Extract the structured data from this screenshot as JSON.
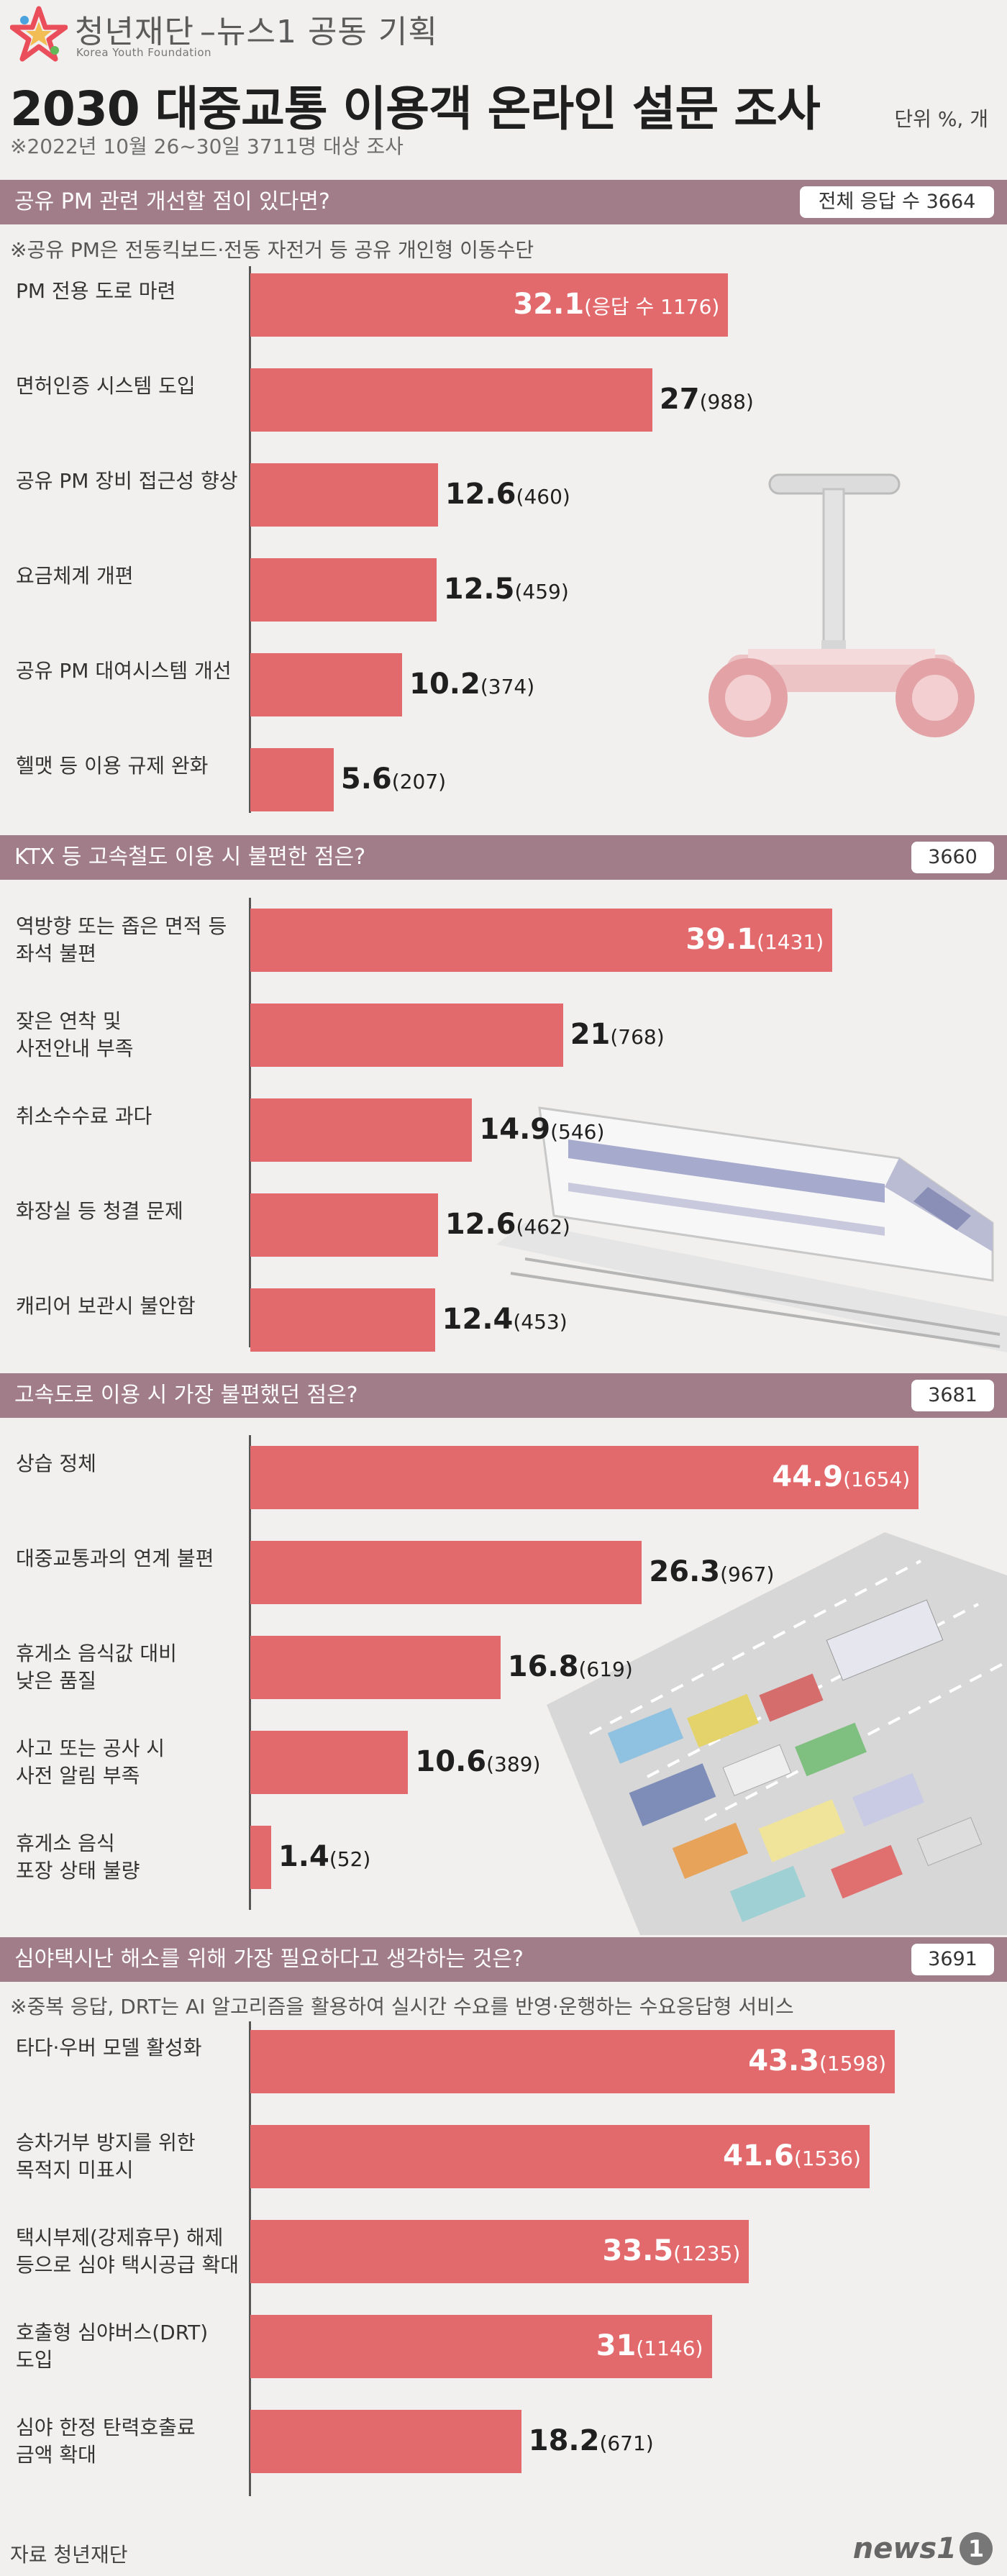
{
  "header": {
    "org": "청년재단",
    "org_en": "Korea Youth Foundation",
    "collab": "–뉴스1 공동 기획",
    "title": "2030 대중교통 이용객 온라인 설문 조사",
    "survey_note": "※2022년 10월 26~30일 3711명 대상 조사",
    "unit": "단위 %, 개"
  },
  "colors": {
    "bar": "#e26a6d",
    "header": "#a07d89",
    "background": "#f1f0ee"
  },
  "chart_data": [
    {
      "type": "bar",
      "title": "공유 PM 관련 개선할 점이 있다면?",
      "total_label": "전체 응답 수 3664",
      "note": "※공유 PM은 전동킥보드·전동 자전거 등 공유 개인형 이동수단",
      "categories": [
        "PM 전용 도로 마련",
        "면허인증 시스템 도입",
        "공유 PM 장비 접근성 향상",
        "요금체계 개편",
        "공유 PM 대여시스템 개선",
        "헬맷 등 이용 규제 완화"
      ],
      "values": [
        32.1,
        27,
        12.6,
        12.5,
        10.2,
        5.6
      ],
      "counts": [
        "(응답 수 1176)",
        "(988)",
        "(460)",
        "(459)",
        "(374)",
        "(207)"
      ]
    },
    {
      "type": "bar",
      "title": "KTX 등 고속철도 이용 시 불편한 점은?",
      "total_label": "3660",
      "categories": [
        "역방향 또는 좁은 면적 등 좌석 불편",
        "잦은 연착 및 사전안내 부족",
        "취소수수료 과다",
        "화장실 등 청결 문제",
        "캐리어 보관시 불안함"
      ],
      "values": [
        39.1,
        21,
        14.9,
        12.6,
        12.4
      ],
      "counts": [
        "(1431)",
        "(768)",
        "(546)",
        "(462)",
        "(453)"
      ]
    },
    {
      "type": "bar",
      "title": "고속도로 이용 시 가장 불편했던 점은?",
      "total_label": "3681",
      "categories": [
        "상습 정체",
        "대중교통과의 연계 불편",
        "휴게소 음식값 대비 낮은 품질",
        "사고 또는 공사 시 사전 알림 부족",
        "휴게소 음식 포장 상태 불량"
      ],
      "values": [
        44.9,
        26.3,
        16.8,
        10.6,
        1.4
      ],
      "counts": [
        "(1654)",
        "(967)",
        "(619)",
        "(389)",
        "(52)"
      ]
    },
    {
      "type": "bar",
      "title": "심야택시난 해소를 위해 가장 필요하다고 생각하는 것은?",
      "total_label": "3691",
      "note": "※중복 응답, DRT는 AI 알고리즘을 활용하여 실시간 수요를 반영·운행하는 수요응답형 서비스",
      "categories": [
        "타다·우버 모델 활성화",
        "승차거부 방지를 위한 목적지 미표시",
        "택시부제(강제휴무) 해제 등으로 심야 택시공급 확대",
        "호출형 심야버스(DRT) 도입",
        "심야 한정 탄력호출료 금액 확대"
      ],
      "values": [
        43.3,
        41.6,
        33.5,
        31,
        18.2
      ],
      "counts": [
        "(1598)",
        "(1536)",
        "(1235)",
        "(1146)",
        "(671)"
      ]
    }
  ],
  "footer": {
    "source": "자료 청년재단",
    "brand": "news1"
  }
}
